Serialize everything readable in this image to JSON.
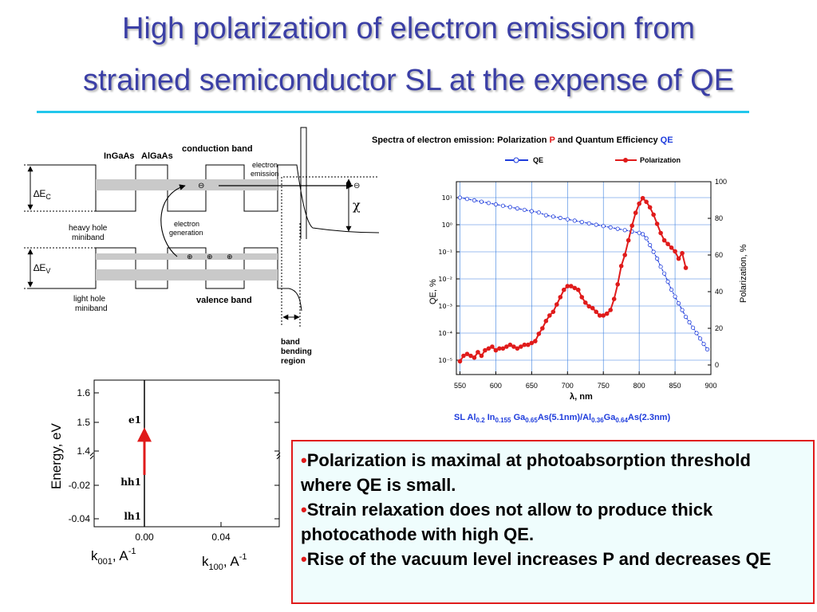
{
  "title": {
    "line1": "High polarization of electron emission from",
    "line2": "strained semiconductor SL at the expense of QE"
  },
  "band_diagram": {
    "conduction_band": "conduction band",
    "ingaas": "InGaAs",
    "algaas": "AlGaAs",
    "electron_emission_1": "electron",
    "electron_emission_2": "emission",
    "delta": "∆",
    "ec_sub": "C",
    "ev_sub": "V",
    "e_letter": "E",
    "chi": "χ",
    "electron_generation_1": "electron",
    "electron_generation_2": "generation",
    "heavy_hole_1": "heavy hole",
    "heavy_hole_2": "miniband",
    "light_hole_1": "light  hole",
    "light_hole_2": "miniband",
    "valence_band": "valence band",
    "band_bending_1": "band",
    "band_bending_2": "bending",
    "band_bending_3": "region",
    "minus_sign": "⊖",
    "plus_sign": "⊕"
  },
  "spectra_chart": {
    "title_prefix": "Spectra of electron emission: Polarization ",
    "title_p": "P",
    "title_mid": " and Quantum Efficiency ",
    "title_qe": "QE",
    "legend_qe": "QE",
    "legend_pol": "Polarization",
    "xlabel": "λ, nm",
    "ylabel_left": "QE, %",
    "ylabel_right": "Polarization,  %",
    "sl_caption": "SL Al0.2 In0.155 Ga0.65As(5.1nm)/Al0.36Ga0.64As(2.3nm)",
    "sl_parts": [
      "SL Al",
      "0.2",
      " In",
      "0.155",
      " Ga",
      "0.65",
      "As(5.1nm)/Al",
      "0.36",
      "Ga",
      "0.64",
      "As(2.3nm)"
    ],
    "colors": {
      "qe": "#1e3cdc",
      "polarization": "#e01b1b",
      "grid": "#3a7fe0"
    },
    "chart_data": {
      "type": "line",
      "x_ticks": [
        550,
        600,
        650,
        700,
        750,
        800,
        850,
        900
      ],
      "xlim": [
        545,
        900
      ],
      "y_left_ticks": [
        "10¹",
        "10⁰",
        "10⁻¹",
        "10⁻²",
        "10⁻³",
        "10⁻⁴",
        "10⁻⁵"
      ],
      "y_left_log_range": [
        -5,
        1
      ],
      "y_left_scale": "log",
      "y_right_ticks": [
        0,
        20,
        40,
        60,
        80,
        100
      ],
      "y_right_range": [
        0,
        100
      ],
      "grid": true,
      "series": [
        {
          "name": "QE",
          "axis": "left",
          "x": [
            550,
            560,
            570,
            580,
            590,
            600,
            610,
            620,
            630,
            640,
            650,
            660,
            670,
            680,
            690,
            700,
            710,
            720,
            730,
            740,
            750,
            760,
            770,
            780,
            790,
            800,
            805,
            810,
            815,
            820,
            825,
            830,
            835,
            840,
            845,
            850,
            855,
            860,
            865,
            870,
            875,
            880,
            885,
            890,
            895
          ],
          "log10_y": [
            1.0,
            0.95,
            0.9,
            0.85,
            0.8,
            0.75,
            0.7,
            0.65,
            0.6,
            0.55,
            0.5,
            0.45,
            0.35,
            0.3,
            0.25,
            0.2,
            0.15,
            0.1,
            0.05,
            0.0,
            -0.05,
            -0.1,
            -0.15,
            -0.2,
            -0.25,
            -0.3,
            -0.35,
            -0.5,
            -0.75,
            -1.0,
            -1.25,
            -1.55,
            -1.8,
            -2.1,
            -2.4,
            -2.65,
            -2.9,
            -3.15,
            -3.4,
            -3.6,
            -3.8,
            -4.0,
            -4.2,
            -4.4,
            -4.6
          ]
        },
        {
          "name": "Polarization",
          "axis": "right",
          "x": [
            550,
            555,
            560,
            565,
            570,
            575,
            580,
            585,
            590,
            595,
            600,
            605,
            610,
            615,
            620,
            625,
            630,
            635,
            640,
            645,
            650,
            655,
            660,
            665,
            670,
            675,
            680,
            685,
            690,
            695,
            700,
            705,
            710,
            715,
            720,
            725,
            730,
            735,
            740,
            745,
            750,
            755,
            760,
            765,
            770,
            775,
            780,
            785,
            790,
            795,
            800,
            805,
            810,
            815,
            820,
            825,
            830,
            835,
            840,
            845,
            850,
            855,
            860,
            865
          ],
          "y": [
            2,
            5,
            6,
            5,
            4,
            7,
            5,
            8,
            9,
            10,
            8,
            9,
            9,
            10,
            11,
            10,
            9,
            10,
            11,
            11,
            12,
            13,
            17,
            20,
            24,
            27,
            29,
            33,
            37,
            41,
            43,
            43,
            42,
            41,
            37,
            34,
            32,
            31,
            29,
            27,
            27,
            28,
            30,
            36,
            44,
            54,
            60,
            68,
            76,
            83,
            88,
            91,
            89,
            86,
            82,
            77,
            72,
            68,
            66,
            64,
            62,
            58,
            61,
            53
          ]
        }
      ]
    }
  },
  "dispersion_plot": {
    "ylabel": "Energy, eV",
    "y_ticks_upper": [
      "1.6",
      "1.5",
      "1.4"
    ],
    "y_ticks_lower": [
      "-0.02",
      "-0.04"
    ],
    "x_ticks": [
      "0.00",
      "0.04"
    ],
    "level_e1": "e1",
    "level_hh1": "hh1",
    "level_lh1": "lh1",
    "k_letter": "k",
    "k001_sub": "001",
    "k100_sub": "100",
    "k_unit": ", A",
    "k_exp": "-1",
    "arrow_color": "#e01b1b"
  },
  "bullets": {
    "items": [
      "Polarization is maximal at photoabsorption threshold where QE is small.",
      "Strain relaxation does not allow to produce thick photocathode with high QE.",
      "Rise of the vacuum level increases P and decreases QE"
    ],
    "marker": "•"
  }
}
